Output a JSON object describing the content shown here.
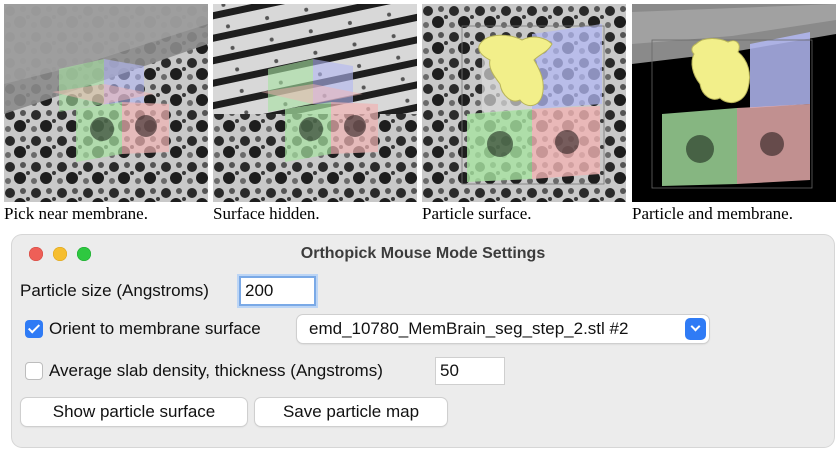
{
  "captions": [
    "Pick near membrane.",
    "Surface hidden.",
    "Particle surface.",
    "Particle and membrane."
  ],
  "window": {
    "title": "Orthopick Mouse Mode Settings"
  },
  "particle_size": {
    "label": "Particle size (Angstroms)",
    "value": "200"
  },
  "orient": {
    "label": "Orient to membrane surface",
    "checked": true,
    "selected_model": "emd_10780_MemBrain_seg_step_2.stl #2"
  },
  "slab": {
    "label": "Average slab density, thickness (Angstroms)",
    "checked": false,
    "value": "50"
  },
  "buttons": {
    "show_surface": "Show particle surface",
    "save_map": "Save particle map"
  },
  "colors": {
    "plane_green": "#a7e3a1",
    "plane_blue": "#b3b8f3",
    "plane_pink": "#f1b4b4",
    "particle_yellow": "#f2ef8a",
    "accent_blue": "#2f7bf5"
  }
}
